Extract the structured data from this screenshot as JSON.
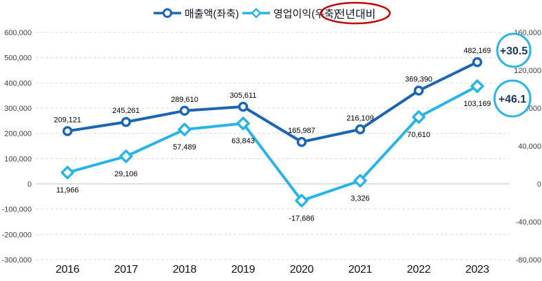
{
  "chart_data": {
    "type": "line",
    "title": "",
    "categories": [
      "2016",
      "2017",
      "2018",
      "2019",
      "2020",
      "2021",
      "2022",
      "2023"
    ],
    "series": [
      {
        "name": "매출액(좌축)",
        "axis": "left",
        "marker": "circle",
        "values": [
          209121,
          245261,
          289610,
          305611,
          165987,
          216109,
          369390,
          482169
        ]
      },
      {
        "name": "영업이익(우축)",
        "axis": "right",
        "marker": "diamond",
        "values": [
          11966,
          29106,
          57489,
          63843,
          -17686,
          3326,
          70610,
          103169
        ]
      }
    ],
    "left_axis": {
      "max": 600000,
      "min": -300000,
      "step": 100000,
      "tick_labels": [
        "600,000",
        "500,000",
        "400,000",
        "300,000",
        "200,000",
        "100,000",
        "0",
        "-100,000",
        "-200,000",
        "-300,000"
      ]
    },
    "right_axis": {
      "max": 160000,
      "min": -80000,
      "step": 40000,
      "tick_labels": [
        "160,000",
        "120,000",
        "80,000",
        "40,000",
        "0",
        "-40,000",
        "-80,000"
      ]
    },
    "legend": {
      "position": "top-center",
      "items": [
        {
          "label": "매출액(좌축)",
          "marker": "circle"
        },
        {
          "label": "영업이익(우축)",
          "marker": "diamond"
        },
        {
          "label": "전년대비",
          "marker": "none",
          "circled": true
        }
      ]
    },
    "annotations": [
      {
        "label": "+30.5"
      },
      {
        "label": "+46.1"
      }
    ],
    "grid": "horizontal dashed, solid zero line"
  },
  "colors": {
    "revenue_line": "#1C64B4",
    "profit_line": "#29B4E8",
    "annotation_circle": "#29B4E8",
    "annotation_text": "#17375E",
    "highlight_ellipse": "#C00000",
    "gridline": "#D9D9D9",
    "zero_line": "#BFBFBF",
    "tick_text": "#404040",
    "label_text": "#000000",
    "year_text": "#111111",
    "legend_text": "#111122"
  }
}
